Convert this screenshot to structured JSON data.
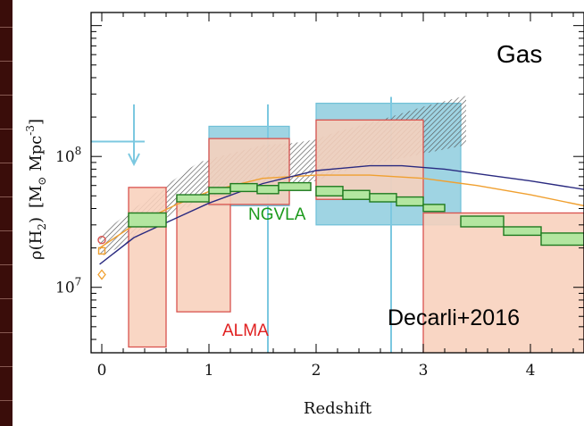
{
  "chart_data": {
    "type": "area",
    "xlabel": "Redshift",
    "ylabel": "ρ(H₂)  [M⊙ Mpc⁻³]",
    "ylabel_parts": {
      "rho": "ρ(H",
      "sub2": "2",
      "close": ")",
      "units_open": "[M",
      "sun": "⊙",
      "mpc": " Mpc",
      "exp": "-3",
      "units_close": "]"
    },
    "xlim": [
      -0.1,
      4.5
    ],
    "ylim_log10": [
      6.5,
      9.1
    ],
    "yscale": "log",
    "x_ticks": [
      {
        "value": 0,
        "label": "0"
      },
      {
        "value": 1,
        "label": "1"
      },
      {
        "value": 2,
        "label": "2"
      },
      {
        "value": 3,
        "label": "3"
      },
      {
        "value": 4,
        "label": "4"
      }
    ],
    "y_ticks": [
      {
        "log10": 7,
        "base": "10",
        "exp": "7"
      },
      {
        "log10": 8,
        "base": "10",
        "exp": "8"
      }
    ],
    "annotations": {
      "panel": "Gas",
      "ngvla": "NGVLA",
      "alma": "ALMA",
      "ref": "Decarli+2016"
    },
    "colors": {
      "alma_fill": "#f8d0bc",
      "alma_edge": "#d9534f",
      "blue_fill": "#9fd4e3",
      "blue_edge": "#6fc0d8",
      "ngvla_fill": "#b3e6a0",
      "ngvla_edge": "#1f7a1f",
      "ngvla_text": "#1c9a1c",
      "alma_text": "#e02020",
      "navy_curve": "#2a2a80",
      "orange_curve": "#f0a030",
      "hatch": "#555555",
      "limit_arrow": "#7cc8e0"
    },
    "blue_boxes": [
      {
        "x": [
          1.0,
          1.75
        ],
        "y": [
          42000000.0,
          170000000.0
        ]
      },
      {
        "x": [
          2.0,
          3.35
        ],
        "y": [
          30000000.0,
          255000000.0
        ]
      }
    ],
    "blue_error_bars": [
      {
        "x": 1.55,
        "y_center": 60000000.0,
        "y_range": [
          2200000.0,
          250000000.0
        ]
      },
      {
        "x": 2.7,
        "y_center": 60000000.0,
        "y_range": [
          1200000.0,
          285000000.0
        ]
      }
    ],
    "blue_upper_limit": {
      "x": 0.3,
      "x_range": [
        -0.1,
        0.4
      ],
      "y": 130000000.0,
      "y_top": 250000000.0,
      "y_arrow": 90000000.0
    },
    "alma_boxes": [
      {
        "x": [
          0.25,
          0.6
        ],
        "y": [
          3500000.0,
          58000000.0
        ]
      },
      {
        "x": [
          0.7,
          1.2
        ],
        "y": [
          6500000.0,
          50000000.0
        ]
      },
      {
        "x": [
          1.0,
          1.75
        ],
        "y": [
          43000000.0,
          137000000.0
        ]
      },
      {
        "x": [
          2.0,
          3.0
        ],
        "y": [
          47000000.0,
          190000000.0
        ]
      },
      {
        "x": [
          3.0,
          4.5
        ],
        "y": [
          3000000.0,
          37000000.0
        ]
      }
    ],
    "ngvla_steps": [
      {
        "x": [
          0.25,
          0.6
        ],
        "y": [
          29000000.0,
          37000000.0
        ]
      },
      {
        "x": [
          0.7,
          1.0
        ],
        "y": [
          45000000.0,
          51000000.0
        ]
      },
      {
        "x": [
          1.0,
          1.2
        ],
        "y": [
          52000000.0,
          58000000.0
        ]
      },
      {
        "x": [
          1.2,
          1.45
        ],
        "y": [
          54000000.0,
          62000000.0
        ]
      },
      {
        "x": [
          1.45,
          1.65
        ],
        "y": [
          52000000.0,
          60000000.0
        ]
      },
      {
        "x": [
          1.65,
          1.95
        ],
        "y": [
          55000000.0,
          63000000.0
        ]
      },
      {
        "x": [
          2.0,
          2.25
        ],
        "y": [
          50000000.0,
          59000000.0
        ]
      },
      {
        "x": [
          2.25,
          2.5
        ],
        "y": [
          47000000.0,
          55000000.0
        ]
      },
      {
        "x": [
          2.5,
          2.75
        ],
        "y": [
          45000000.0,
          52000000.0
        ]
      },
      {
        "x": [
          2.75,
          3.0
        ],
        "y": [
          42000000.0,
          49000000.0
        ]
      },
      {
        "x": [
          3.0,
          3.2
        ],
        "y": [
          38000000.0,
          43000000.0
        ]
      },
      {
        "x": [
          3.35,
          3.75
        ],
        "y": [
          29000000.0,
          35000000.0
        ]
      },
      {
        "x": [
          3.75,
          4.1
        ],
        "y": [
          25000000.0,
          29000000.0
        ]
      },
      {
        "x": [
          4.1,
          4.5
        ],
        "y": [
          21000000.0,
          26000000.0
        ]
      }
    ],
    "hatched_band": {
      "x": [
        -0.02,
        0.3,
        0.6,
        0.9,
        1.2,
        1.5,
        1.8,
        2.0,
        2.2,
        2.6,
        3.0,
        3.35,
        3.4
      ],
      "y_low": [
        17000000.0,
        23000000.0,
        34000000.0,
        45000000.0,
        56000000.0,
        63000000.0,
        62000000.0,
        65000000.0,
        75000000.0,
        90000000.0,
        105000000.0,
        120000000.0,
        125000000.0
      ],
      "y_high": [
        25000000.0,
        40000000.0,
        60000000.0,
        90000000.0,
        105000000.0,
        122000000.0,
        127000000.0,
        135000000.0,
        155000000.0,
        190000000.0,
        240000000.0,
        285000000.0,
        290000000.0
      ]
    },
    "curve_navy": {
      "x": [
        -0.02,
        0.3,
        0.7,
        1.0,
        1.5,
        2.0,
        2.5,
        2.8,
        3.2,
        3.6,
        4.0,
        4.5
      ],
      "y": [
        15000000.0,
        24000000.0,
        34000000.0,
        44000000.0,
        62000000.0,
        78000000.0,
        85000000.0,
        85000000.0,
        80000000.0,
        72000000.0,
        65000000.0,
        56000000.0
      ]
    },
    "curve_orange": {
      "x": [
        -0.02,
        0.3,
        0.7,
        1.0,
        1.5,
        2.0,
        2.5,
        3.0,
        3.5,
        4.0,
        4.5
      ],
      "y": [
        20000000.0,
        30000000.0,
        43000000.0,
        54000000.0,
        68000000.0,
        72000000.0,
        72000000.0,
        68000000.0,
        60000000.0,
        51000000.0,
        42000000.0
      ]
    },
    "z0_points": [
      {
        "x": 0.0,
        "y": 23000000.0,
        "color": "#d9534f",
        "shape": "circle"
      },
      {
        "x": 0.0,
        "y": 19000000.0,
        "color": "#f0a030",
        "shape": "square"
      },
      {
        "x": 0.0,
        "y": 12500000.0,
        "color": "#f0a030",
        "shape": "diamond"
      }
    ]
  }
}
